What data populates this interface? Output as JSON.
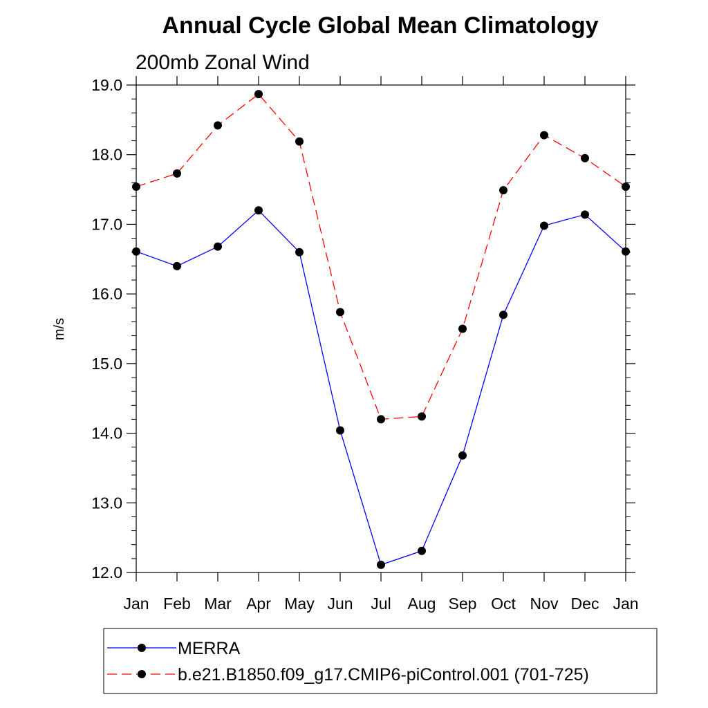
{
  "chart_data": {
    "type": "line",
    "title": "Annual Cycle Global Mean Climatology",
    "subtitle": "200mb Zonal Wind",
    "xlabel": "",
    "ylabel": "m/s",
    "ylim": [
      12.0,
      19.0
    ],
    "ytick_labels": [
      "12.0",
      "13.0",
      "14.0",
      "15.0",
      "16.0",
      "17.0",
      "18.0",
      "19.0"
    ],
    "categories": [
      "Jan",
      "Feb",
      "Mar",
      "Apr",
      "May",
      "Jun",
      "Jul",
      "Aug",
      "Sep",
      "Oct",
      "Nov",
      "Dec",
      "Jan"
    ],
    "grid": false,
    "legend_position": "bottom",
    "series": [
      {
        "name": "MERRA",
        "color": "#0000ff",
        "line_style": "solid",
        "marker": "circle",
        "values": [
          16.61,
          16.4,
          16.68,
          17.2,
          16.6,
          14.04,
          12.11,
          12.31,
          13.68,
          15.7,
          16.98,
          17.14,
          16.61
        ]
      },
      {
        "name": "b.e21.B1850.f09_g17.CMIP6-piControl.001 (701-725)",
        "color": "#ff0000",
        "line_style": "dashed",
        "marker": "circle",
        "values": [
          17.54,
          17.73,
          18.42,
          18.87,
          18.19,
          15.74,
          14.2,
          14.24,
          15.5,
          17.49,
          18.28,
          17.95,
          17.54
        ]
      }
    ]
  }
}
